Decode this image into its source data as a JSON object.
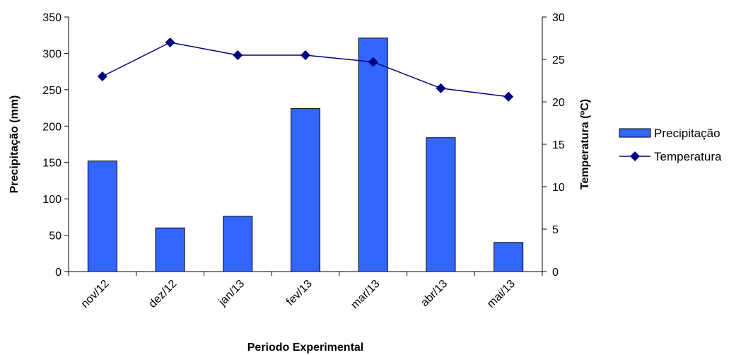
{
  "chart_data": {
    "type": "bar+line",
    "categories": [
      "nov/12",
      "dez/12",
      "jan/13",
      "fev/13",
      "mar/13",
      "abr/13",
      "mai/13"
    ],
    "series": [
      {
        "name": "Precipitação",
        "type": "bar",
        "axis": "left",
        "values": [
          152,
          60,
          76,
          224,
          321,
          184,
          40
        ],
        "color": "#3366FF"
      },
      {
        "name": "Temperatura",
        "type": "line",
        "axis": "right",
        "marker": "diamond",
        "values": [
          23.0,
          27.0,
          25.5,
          25.5,
          24.7,
          21.6,
          20.6
        ],
        "color": "#000080"
      }
    ],
    "xlabel": "Periodo Experimental",
    "ylabel": "Precipitação (mm)",
    "y2label": "Temperatura (ºC)",
    "ylim": [
      0,
      350
    ],
    "y2lim": [
      0,
      30
    ],
    "yticks": [
      0,
      50,
      100,
      150,
      200,
      250,
      300,
      350
    ],
    "y2ticks": [
      0,
      5,
      10,
      15,
      20,
      25,
      30
    ],
    "grid": false,
    "legend_position": "right"
  }
}
